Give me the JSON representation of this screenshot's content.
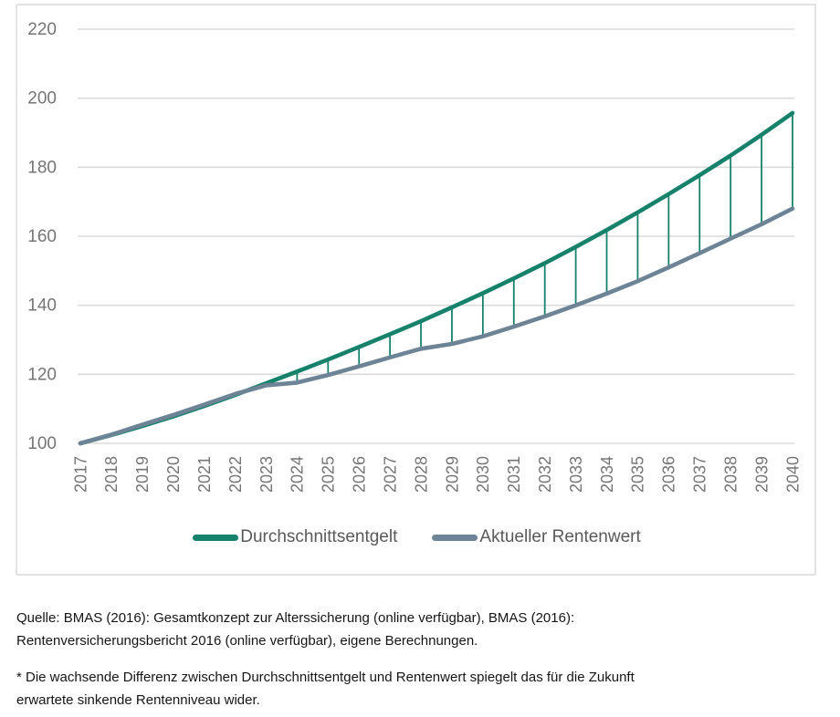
{
  "chart_data": {
    "type": "line",
    "title": "",
    "xlabel": "",
    "ylabel": "",
    "x": [
      "2017",
      "2018",
      "2019",
      "2020",
      "2021",
      "2022",
      "2023",
      "2024",
      "2025",
      "2026",
      "2027",
      "2028",
      "2029",
      "2030",
      "2031",
      "2032",
      "2033",
      "2034",
      "2035",
      "2036",
      "2037",
      "2038",
      "2039",
      "2040"
    ],
    "series": [
      {
        "name": "Durchschnittsentgelt",
        "color": "#17826C",
        "values": [
          100,
          102.4,
          105.0,
          107.8,
          110.8,
          114.0,
          117.4,
          120.8,
          124.3,
          127.9,
          131.6,
          135.4,
          139.4,
          143.5,
          147.8,
          152.2,
          156.9,
          161.8,
          166.9,
          172.2,
          177.7,
          183.4,
          189.4,
          195.7
        ]
      },
      {
        "name": "Aktueller Rentenwert",
        "color": "#6D8496",
        "values": [
          100,
          102.5,
          105.4,
          108.2,
          111.2,
          114.3,
          116.8,
          117.6,
          119.8,
          122.3,
          124.9,
          127.4,
          128.8,
          131.0,
          133.8,
          136.8,
          140.0,
          143.4,
          147.0,
          151.0,
          155.1,
          159.3,
          163.5,
          168.0
        ]
      }
    ],
    "ylim": [
      100,
      220
    ],
    "yticks": [
      100,
      120,
      140,
      160,
      180,
      200,
      220
    ],
    "grid": true,
    "legend_position": "bottom",
    "annotations": "vertical connector lines between the two series at each year, highlighting the growing gap"
  },
  "legend": {
    "items": [
      {
        "label": "Durchschnittsentgelt",
        "color": "#17826C"
      },
      {
        "label": "Aktueller Rentenwert",
        "color": "#6D8496"
      }
    ]
  },
  "source": {
    "line1": "Quelle: BMAS (2016): Gesamtkonzept zur Alterssicherung (online verfügbar), BMAS (2016):",
    "line2": "Rentenversicherungsbericht 2016 (online verfügbar), eigene Berechnungen."
  },
  "footnote": {
    "line1": "* Die wachsende Differenz zwischen Durchschnittsentgelt und Rentenwert spiegelt das für die Zukunft",
    "line2": "erwartete sinkende Rentenniveau wider."
  },
  "colors": {
    "grid": "#DBDBDB",
    "axis_text": "#757575",
    "legend_text": "#595959",
    "card_border": "#E2E2E2",
    "connector": "#17826C"
  }
}
